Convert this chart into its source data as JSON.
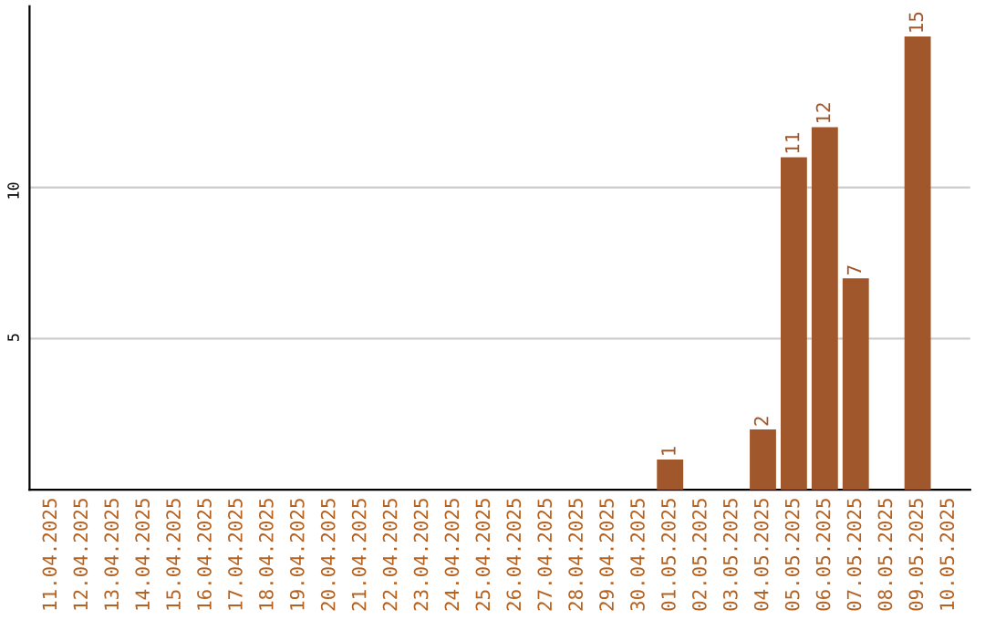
{
  "chart_data": {
    "type": "bar",
    "categories": [
      "11.04.2025",
      "12.04.2025",
      "13.04.2025",
      "14.04.2025",
      "15.04.2025",
      "16.04.2025",
      "17.04.2025",
      "18.04.2025",
      "19.04.2025",
      "20.04.2025",
      "21.04.2025",
      "22.04.2025",
      "23.04.2025",
      "24.04.2025",
      "25.04.2025",
      "26.04.2025",
      "27.04.2025",
      "28.04.2025",
      "29.04.2025",
      "30.04.2025",
      "01.05.2025",
      "02.05.2025",
      "03.05.2025",
      "04.05.2025",
      "05.05.2025",
      "06.05.2025",
      "07.05.2025",
      "08.05.2025",
      "09.05.2025",
      "10.05.2025"
    ],
    "values": [
      0,
      0,
      0,
      0,
      0,
      0,
      0,
      0,
      0,
      0,
      0,
      0,
      0,
      0,
      0,
      0,
      0,
      0,
      0,
      0,
      1,
      0,
      0,
      2,
      11,
      12,
      7,
      0,
      15,
      0
    ],
    "value_labels": [
      null,
      null,
      null,
      null,
      null,
      null,
      null,
      null,
      null,
      null,
      null,
      null,
      null,
      null,
      null,
      null,
      null,
      null,
      null,
      null,
      "1",
      null,
      null,
      "2",
      "11",
      "12",
      "7",
      null,
      "15",
      null
    ],
    "color": "#a0572b",
    "ylim": [
      0,
      16
    ],
    "yticks": [
      5,
      10
    ],
    "grid": "y",
    "legend": false
  }
}
